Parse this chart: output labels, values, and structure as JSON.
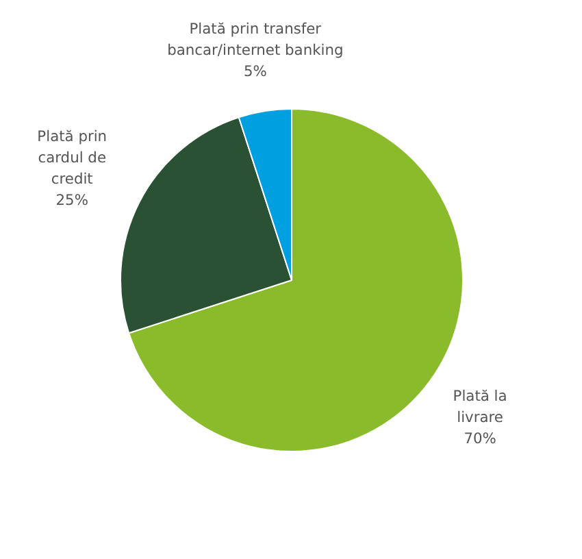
{
  "chart_data": {
    "type": "pie",
    "categories": [
      "Plată la livrare",
      "Plată prin cardul de credit",
      "Plată prin transfer bancar/internet banking"
    ],
    "values": [
      70,
      25,
      5
    ],
    "colors": [
      "#8abb2a",
      "#2a5134",
      "#00a0e0"
    ],
    "value_labels": [
      "70%",
      "25%",
      "5%"
    ]
  }
}
